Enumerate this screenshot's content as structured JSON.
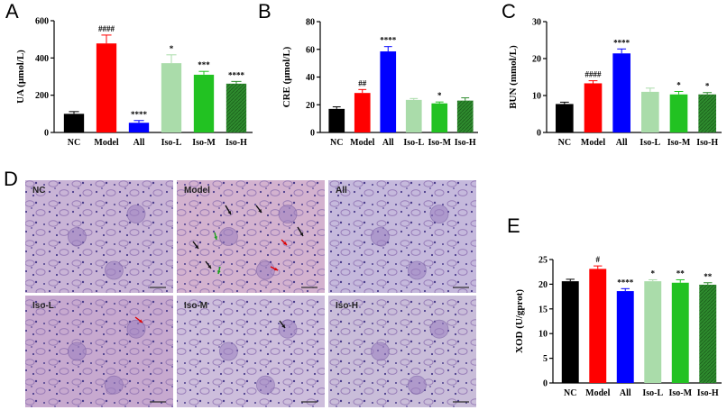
{
  "chart_data": [
    {
      "type": "bar",
      "panel_label": "A",
      "ylabel": "UA (μmol/L)",
      "categories": [
        "NC",
        "Model",
        "All",
        "Iso-L",
        "Iso-M",
        "Iso-H"
      ],
      "values": [
        100,
        478,
        52,
        372,
        310,
        262
      ],
      "errors": [
        12,
        45,
        12,
        45,
        18,
        12
      ],
      "significance": [
        "",
        "####",
        "****",
        "*",
        "***",
        "****"
      ],
      "ylim": [
        0,
        600
      ],
      "yticks": [
        0,
        200,
        400,
        600
      ],
      "colors": [
        "#000000",
        "#ff0000",
        "#0000ff",
        "#aadcaa",
        "#22c222",
        "#2e8b2e"
      ],
      "patterns": [
        "solid",
        "solid",
        "solid",
        "solid",
        "solid",
        "hatched"
      ]
    },
    {
      "type": "bar",
      "panel_label": "B",
      "ylabel": "CRE (μmol/L)",
      "categories": [
        "NC",
        "Model",
        "All",
        "Iso-L",
        "Iso-M",
        "Iso-H"
      ],
      "values": [
        17,
        28.5,
        58.5,
        23.5,
        21,
        23
      ],
      "errors": [
        1.5,
        2.5,
        3.5,
        1,
        1,
        2
      ],
      "significance": [
        "",
        "##",
        "****",
        "",
        "*",
        ""
      ],
      "ylim": [
        0,
        80
      ],
      "yticks": [
        0,
        20,
        40,
        60,
        80
      ],
      "colors": [
        "#000000",
        "#ff0000",
        "#0000ff",
        "#aadcaa",
        "#22c222",
        "#2e8b2e"
      ],
      "patterns": [
        "solid",
        "solid",
        "solid",
        "solid",
        "solid",
        "hatched"
      ]
    },
    {
      "type": "bar",
      "panel_label": "C",
      "ylabel": "BUN (mmol/L)",
      "categories": [
        "NC",
        "Model",
        "All",
        "Iso-L",
        "Iso-M",
        "Iso-H"
      ],
      "values": [
        7.7,
        13.3,
        21.4,
        11,
        10.3,
        10.3
      ],
      "errors": [
        0.5,
        0.7,
        1.2,
        1,
        0.8,
        0.5
      ],
      "significance": [
        "",
        "####",
        "****",
        "",
        "*",
        "*"
      ],
      "ylim": [
        0,
        30
      ],
      "yticks": [
        0,
        10,
        20,
        30
      ],
      "colors": [
        "#000000",
        "#ff0000",
        "#0000ff",
        "#aadcaa",
        "#22c222",
        "#2e8b2e"
      ],
      "patterns": [
        "solid",
        "solid",
        "solid",
        "solid",
        "solid",
        "hatched"
      ]
    },
    {
      "type": "bar",
      "panel_label": "E",
      "ylabel": "XOD (U/gprot)",
      "categories": [
        "NC",
        "Model",
        "All",
        "Iso-L",
        "Iso-M",
        "Iso-H"
      ],
      "values": [
        20.6,
        23.1,
        18.6,
        20.6,
        20.3,
        19.9
      ],
      "errors": [
        0.4,
        0.6,
        0.5,
        0.3,
        0.6,
        0.4
      ],
      "significance": [
        "",
        "#",
        "****",
        "*",
        "**",
        "**"
      ],
      "ylim": [
        0,
        25
      ],
      "yticks": [
        0,
        5,
        10,
        15,
        20,
        25
      ],
      "colors": [
        "#000000",
        "#ff0000",
        "#0000ff",
        "#aadcaa",
        "#22c222",
        "#2e8b2e"
      ],
      "patterns": [
        "solid",
        "solid",
        "solid",
        "solid",
        "solid",
        "hatched"
      ]
    }
  ],
  "histology": {
    "panel_label": "D",
    "images": [
      {
        "label": "NC",
        "tone": "#c9b4d6"
      },
      {
        "label": "Model",
        "tone": "#d3b2cf"
      },
      {
        "label": "All",
        "tone": "#c5b9dc"
      },
      {
        "label": "Iso-L",
        "tone": "#c7a9cf"
      },
      {
        "label": "Iso-M",
        "tone": "#cdbedc"
      },
      {
        "label": "Iso-H",
        "tone": "#c9bdd9"
      }
    ]
  }
}
